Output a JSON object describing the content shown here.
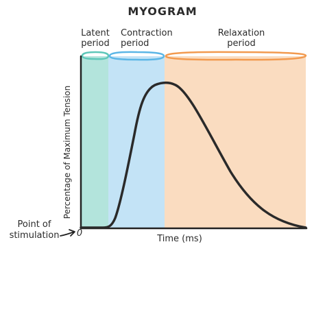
{
  "title": "MYOGRAM",
  "periods": {
    "latent": {
      "line1": "Latent",
      "line2": "period"
    },
    "contraction": {
      "line1": "Contraction",
      "line2": "period"
    },
    "relaxation": {
      "line1": "Relaxation",
      "line2": "period"
    }
  },
  "axes": {
    "ylabel": "Percentage of Maximum Tension",
    "xlabel": "Time (ms)",
    "origin": "0"
  },
  "stimulus": {
    "line1": "Point of",
    "line2": "stimulation"
  },
  "colors": {
    "title": "#6b2035",
    "latent_fill": "#b3e4dc",
    "latent_bracket": "#5ec7b9",
    "contraction_fill": "#c3e3f6",
    "contraction_bracket": "#5bb6e6",
    "relaxation_fill": "#fadcc0",
    "relaxation_bracket": "#f29a4f",
    "curve": "#2a2a2a",
    "axis": "#222222"
  }
}
